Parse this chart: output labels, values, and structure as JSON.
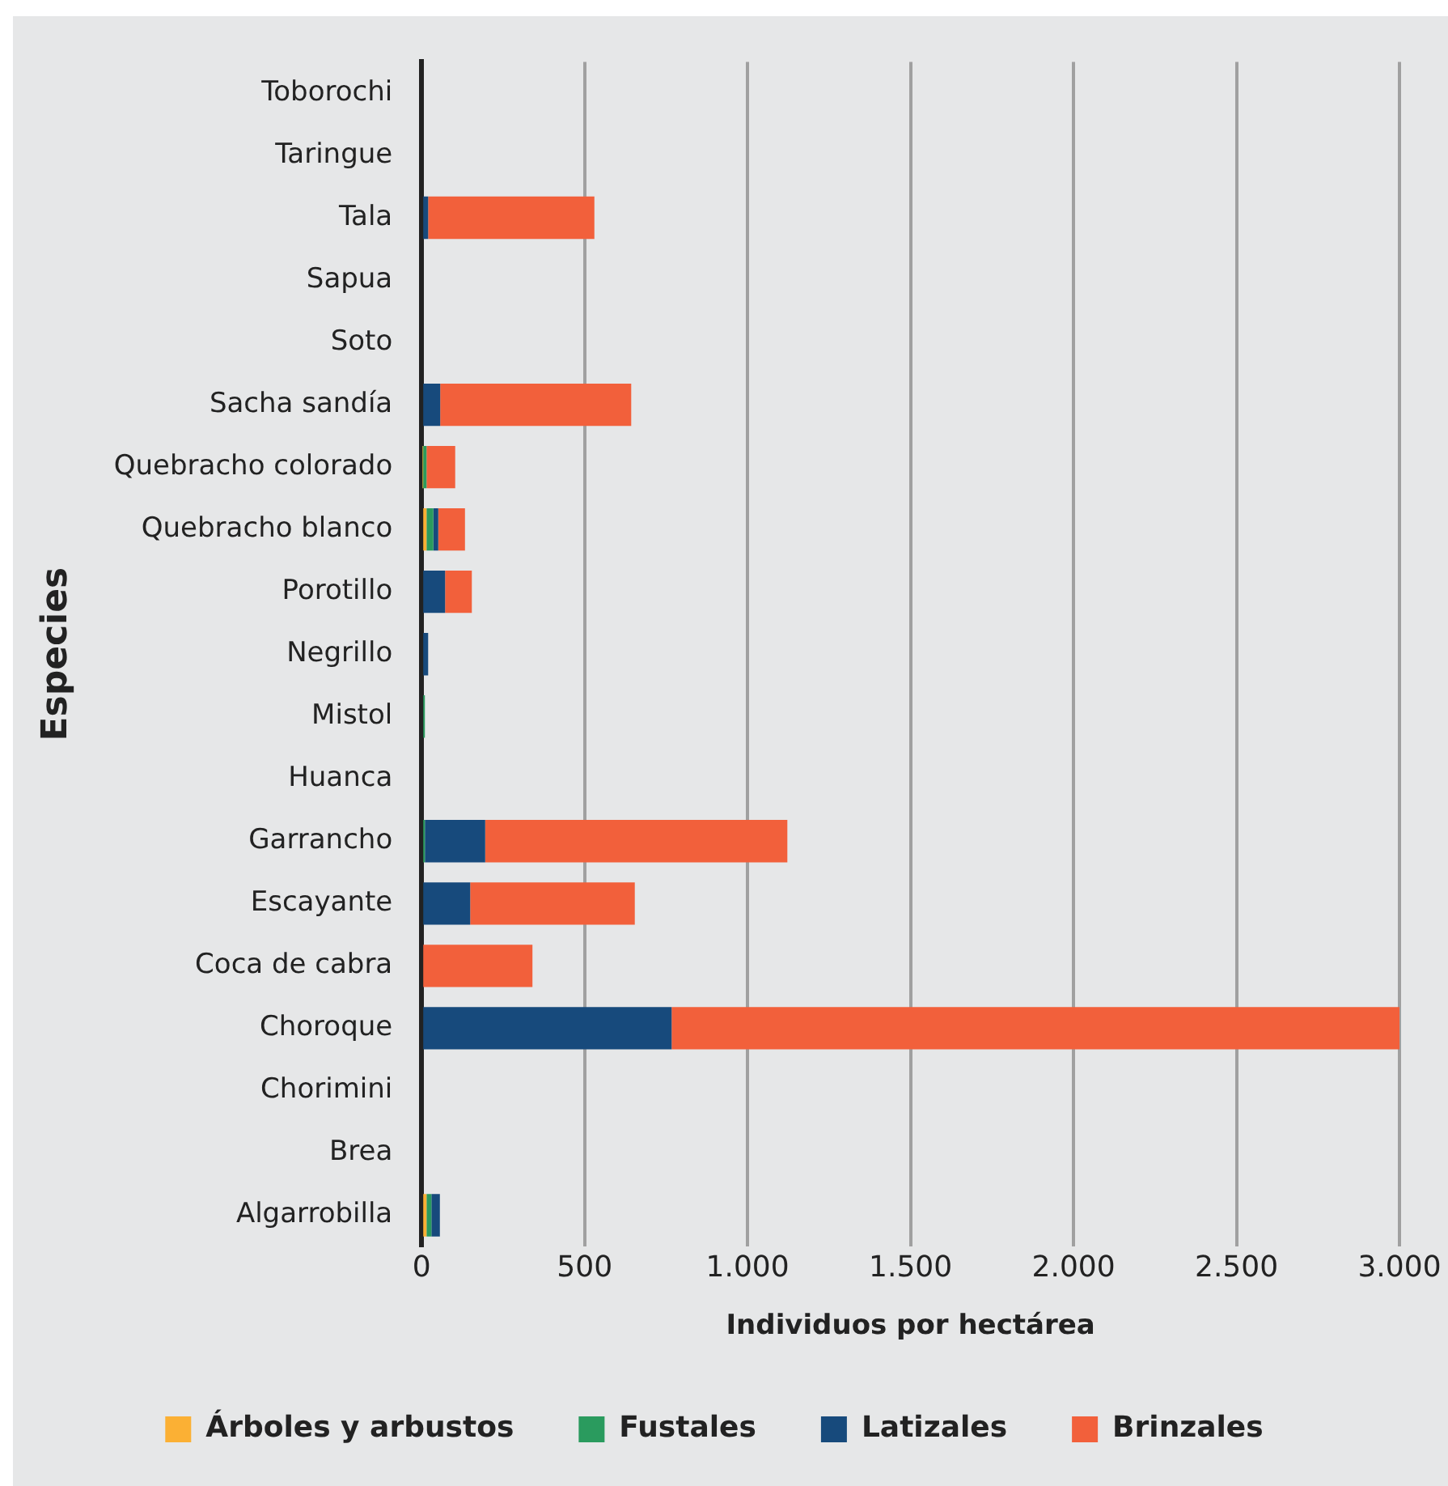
{
  "chart_data": {
    "type": "bar",
    "orientation": "horizontal",
    "stacked": true,
    "categories": [
      "Toborochi",
      "Taringue",
      "Tala",
      "Sapua",
      "Soto",
      "Sacha sandía",
      "Quebracho colorado",
      "Quebracho blanco",
      "Porotillo",
      "Negrillo",
      "Mistol",
      "Huanca",
      "Garrancho",
      "Escayante",
      "Coca de cabra",
      "Choroque",
      "Chorimini",
      "Brea",
      "Algarrobilla"
    ],
    "series": [
      {
        "name": "Árboles y arbustos",
        "color": "#fbb034",
        "values": [
          0,
          0,
          0,
          0,
          0,
          0,
          3,
          15,
          0,
          0,
          0,
          0,
          0,
          0,
          0,
          0,
          0,
          0,
          15
        ]
      },
      {
        "name": "Fustales",
        "color": "#2a9b5e",
        "values": [
          0,
          0,
          0,
          0,
          0,
          0,
          12,
          21,
          0,
          0,
          10,
          0,
          10,
          5,
          0,
          0,
          0,
          0,
          15
        ]
      },
      {
        "name": "Latizales",
        "color": "#174a7c",
        "values": [
          0,
          0,
          20,
          0,
          0,
          57,
          0,
          15,
          72,
          20,
          0,
          0,
          185,
          144,
          0,
          767,
          0,
          0,
          26
        ]
      },
      {
        "name": "Brinzales",
        "color": "#f2603b",
        "values": [
          0,
          0,
          510,
          0,
          0,
          586,
          88,
          82,
          82,
          0,
          0,
          0,
          927,
          505,
          340,
          2233,
          0,
          0,
          0
        ]
      }
    ],
    "xlim": [
      0,
      3000
    ],
    "xticks": [
      0,
      500,
      {
        "value": 1000,
        "label": "1.000"
      },
      {
        "value": 1500,
        "label": "1.500"
      },
      {
        "value": 2000,
        "label": "2.000"
      },
      {
        "value": 2500,
        "label": "2.500"
      },
      {
        "value": 3000,
        "label": "3.000"
      }
    ],
    "xlabel": "Individuos por hectárea",
    "ylabel": "Especies",
    "grid": "x",
    "legend": "bottom"
  }
}
